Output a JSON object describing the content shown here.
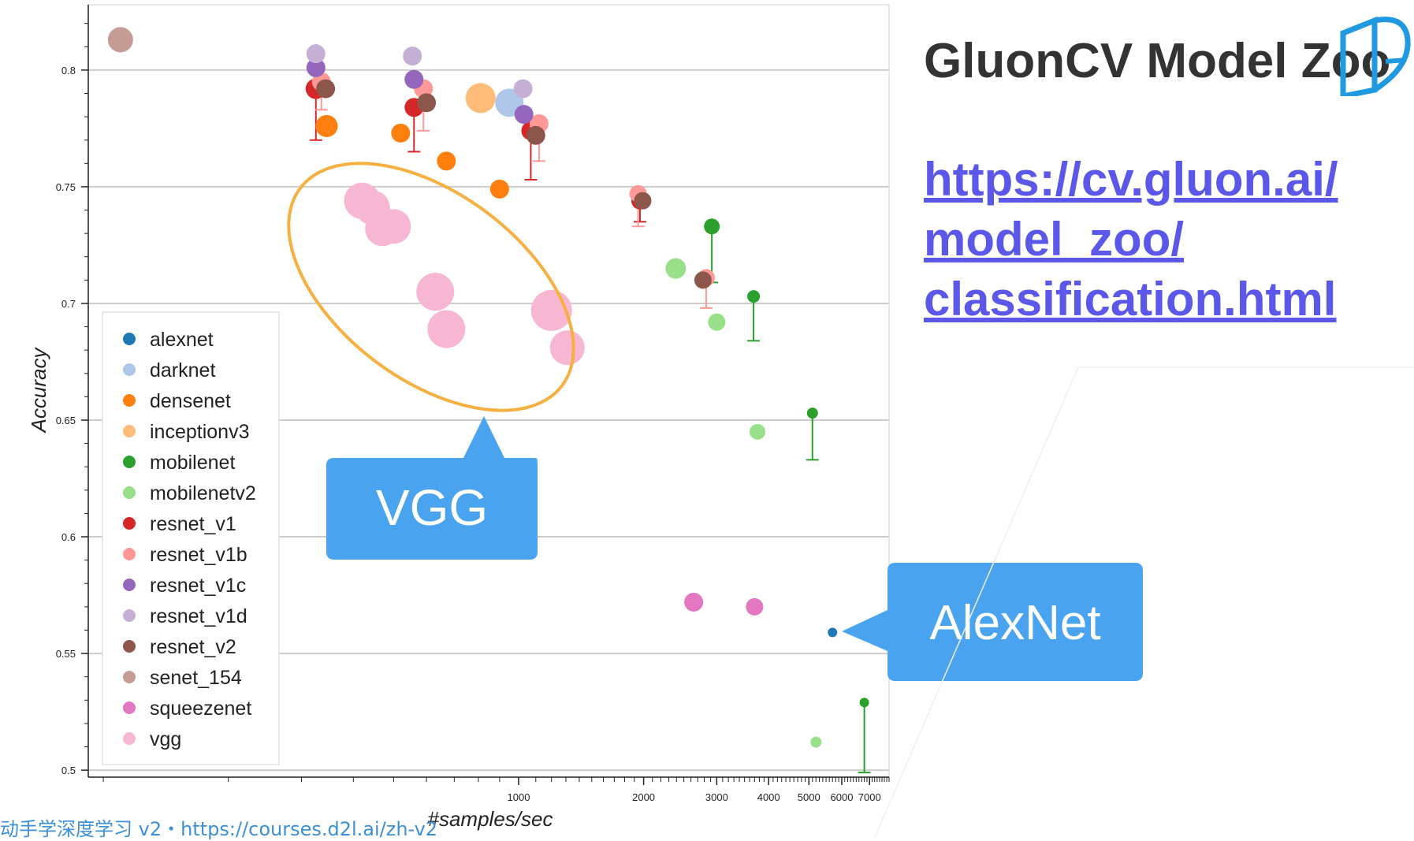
{
  "page": {
    "title": "GluonCV Model Zoo",
    "link_lines": [
      "https://cv.gluon.ai/",
      "model_zoo/",
      "classification.html"
    ],
    "footer": "动手学深度学习 v2・https://courses.d2l.ai/zh-v2",
    "logo_icon": "d2l-book-icon"
  },
  "callouts": {
    "vgg": "VGG",
    "alexnet": "AlexNet",
    "color": "#4aa3ee",
    "ellipse_color": "#f5b041"
  },
  "chart_data": {
    "type": "scatter",
    "xlabel": "#samples/sec",
    "ylabel": "Accuracy",
    "x_scale": "log",
    "xlim": [
      92,
      7800
    ],
    "ylim": [
      0.497,
      0.828
    ],
    "x_ticks": [
      1000,
      2000,
      3000,
      4000,
      5000,
      6000,
      7000
    ],
    "y_ticks": [
      0.5,
      0.55,
      0.6,
      0.65,
      0.7,
      0.75,
      0.8
    ],
    "legend_position": "left",
    "grid": "horizontal",
    "series": [
      {
        "name": "alexnet",
        "color": "#1f77b4",
        "points": [
          [
            5700,
            0.559,
            6
          ]
        ]
      },
      {
        "name": "darknet",
        "color": "#aec7e8",
        "points": [
          [
            950,
            0.786,
            18
          ]
        ]
      },
      {
        "name": "densenet",
        "color": "#ff7f0e",
        "points": [
          [
            345,
            0.776,
            14
          ],
          [
            520,
            0.773,
            12
          ],
          [
            670,
            0.761,
            12
          ],
          [
            900,
            0.749,
            12
          ]
        ]
      },
      {
        "name": "inceptionv3",
        "color": "#ffbb78",
        "points": [
          [
            810,
            0.788,
            19
          ]
        ]
      },
      {
        "name": "mobilenet",
        "color": "#2ca02c",
        "points": [
          [
            2920,
            0.733,
            10,
            0.709
          ],
          [
            3680,
            0.703,
            8,
            0.684
          ],
          [
            5100,
            0.653,
            7,
            0.633
          ],
          [
            6800,
            0.529,
            6,
            0.499
          ]
        ]
      },
      {
        "name": "mobilenetv2",
        "color": "#98df8a",
        "points": [
          [
            2390,
            0.715,
            13
          ],
          [
            3000,
            0.692,
            11
          ],
          [
            3760,
            0.645,
            10
          ],
          [
            5200,
            0.512,
            7
          ]
        ]
      },
      {
        "name": "resnet_v1",
        "color": "#d62728",
        "points": [
          [
            325,
            0.792,
            13,
            0.77
          ],
          [
            560,
            0.784,
            12,
            0.765
          ],
          [
            1070,
            0.774,
            12,
            0.753
          ],
          [
            1960,
            0.744,
            11,
            0.735
          ]
        ]
      },
      {
        "name": "resnet_v1b",
        "color": "#ff9896",
        "points": [
          [
            335,
            0.795,
            12,
            0.783
          ],
          [
            590,
            0.792,
            12,
            0.774
          ],
          [
            1120,
            0.777,
            12,
            0.761
          ],
          [
            1940,
            0.747,
            11,
            0.733
          ],
          [
            2830,
            0.711,
            11,
            0.698
          ]
        ]
      },
      {
        "name": "resnet_v1c",
        "color": "#9467bd",
        "points": [
          [
            325,
            0.801,
            12
          ],
          [
            560,
            0.796,
            12
          ],
          [
            1030,
            0.781,
            12
          ]
        ]
      },
      {
        "name": "resnet_v1d",
        "color": "#c5b0d5",
        "points": [
          [
            325,
            0.807,
            12
          ],
          [
            555,
            0.806,
            12
          ],
          [
            1025,
            0.792,
            12
          ]
        ]
      },
      {
        "name": "resnet_v2",
        "color": "#8c564b",
        "points": [
          [
            343,
            0.792,
            12
          ],
          [
            600,
            0.786,
            12
          ],
          [
            1100,
            0.772,
            12
          ],
          [
            1990,
            0.744,
            11
          ],
          [
            2780,
            0.71,
            11
          ]
        ]
      },
      {
        "name": "senet_154",
        "color": "#c49c94",
        "points": [
          [
            110,
            0.813,
            16
          ]
        ]
      },
      {
        "name": "squeezenet",
        "color": "#e377c2",
        "points": [
          [
            2640,
            0.572,
            12
          ],
          [
            3700,
            0.57,
            11
          ]
        ]
      },
      {
        "name": "vgg",
        "color": "#f7b6d2",
        "points": [
          [
            420,
            0.744,
            23
          ],
          [
            445,
            0.741,
            22
          ],
          [
            470,
            0.732,
            22
          ],
          [
            500,
            0.733,
            22
          ],
          [
            630,
            0.705,
            24
          ],
          [
            670,
            0.689,
            24
          ],
          [
            1200,
            0.697,
            26
          ],
          [
            1310,
            0.681,
            22
          ]
        ]
      }
    ]
  }
}
